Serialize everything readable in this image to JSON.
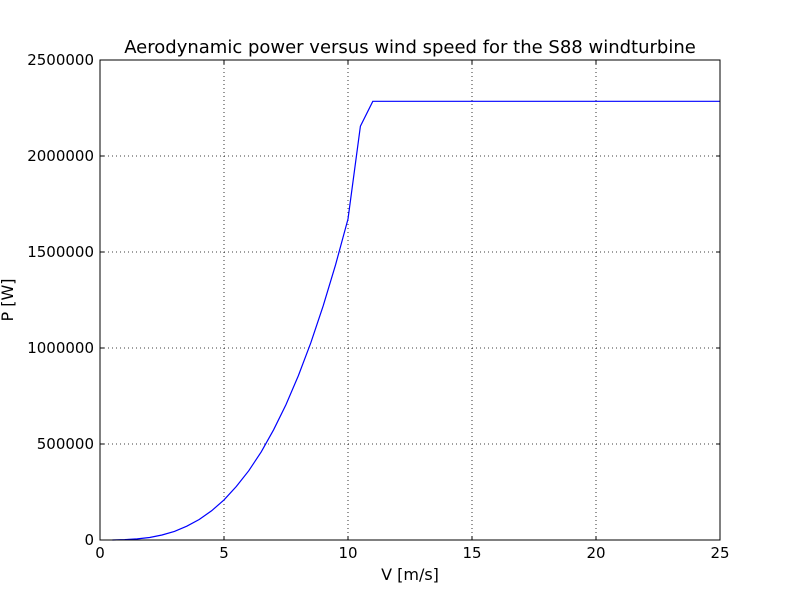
{
  "chart_data": {
    "type": "line",
    "title": "Aerodynamic power versus wind speed for the S88 windturbine",
    "xlabel": "V [m/s]",
    "ylabel": "P [W]",
    "xlim": [
      0,
      25
    ],
    "ylim": [
      0,
      2500000
    ],
    "xticks": [
      0,
      5,
      10,
      15,
      20,
      25
    ],
    "yticks": [
      0,
      500000,
      1000000,
      1500000,
      2000000,
      2500000
    ],
    "xtick_labels": [
      "0",
      "5",
      "10",
      "15",
      "20",
      "25"
    ],
    "ytick_labels": [
      "0",
      "500000",
      "1000000",
      "1500000",
      "2000000",
      "2500000"
    ],
    "grid": true,
    "series": [
      {
        "color": "#0000ff",
        "x": [
          0.5,
          1,
          1.5,
          2,
          2.5,
          3,
          3.5,
          4,
          4.5,
          5,
          5.5,
          6,
          6.5,
          7,
          7.5,
          8,
          8.5,
          9,
          9.5,
          10,
          10.5,
          11,
          11.5,
          12,
          12.5,
          13,
          13.5,
          14,
          14.5,
          15,
          15.5,
          16,
          16.5,
          17,
          17.5,
          18,
          18.5,
          19,
          19.5,
          20,
          20.5,
          21,
          21.5,
          22,
          22.5,
          23,
          23.5,
          24,
          24.5,
          25
        ],
        "y": [
          0,
          1900,
          5900,
          13000,
          26000,
          45000,
          72000,
          107000,
          152000,
          209000,
          279000,
          361000,
          459000,
          574000,
          705000,
          856000,
          1027000,
          1220000,
          1434000,
          1672000,
          2155000,
          2285000,
          2285000,
          2285000,
          2285000,
          2285000,
          2285000,
          2285000,
          2285000,
          2285000,
          2285000,
          2285000,
          2285000,
          2285000,
          2285000,
          2285000,
          2285000,
          2285000,
          2285000,
          2285000,
          2285000,
          2285000,
          2285000,
          2285000,
          2285000,
          2285000,
          2285000,
          2285000,
          2285000,
          2285000
        ]
      }
    ]
  }
}
